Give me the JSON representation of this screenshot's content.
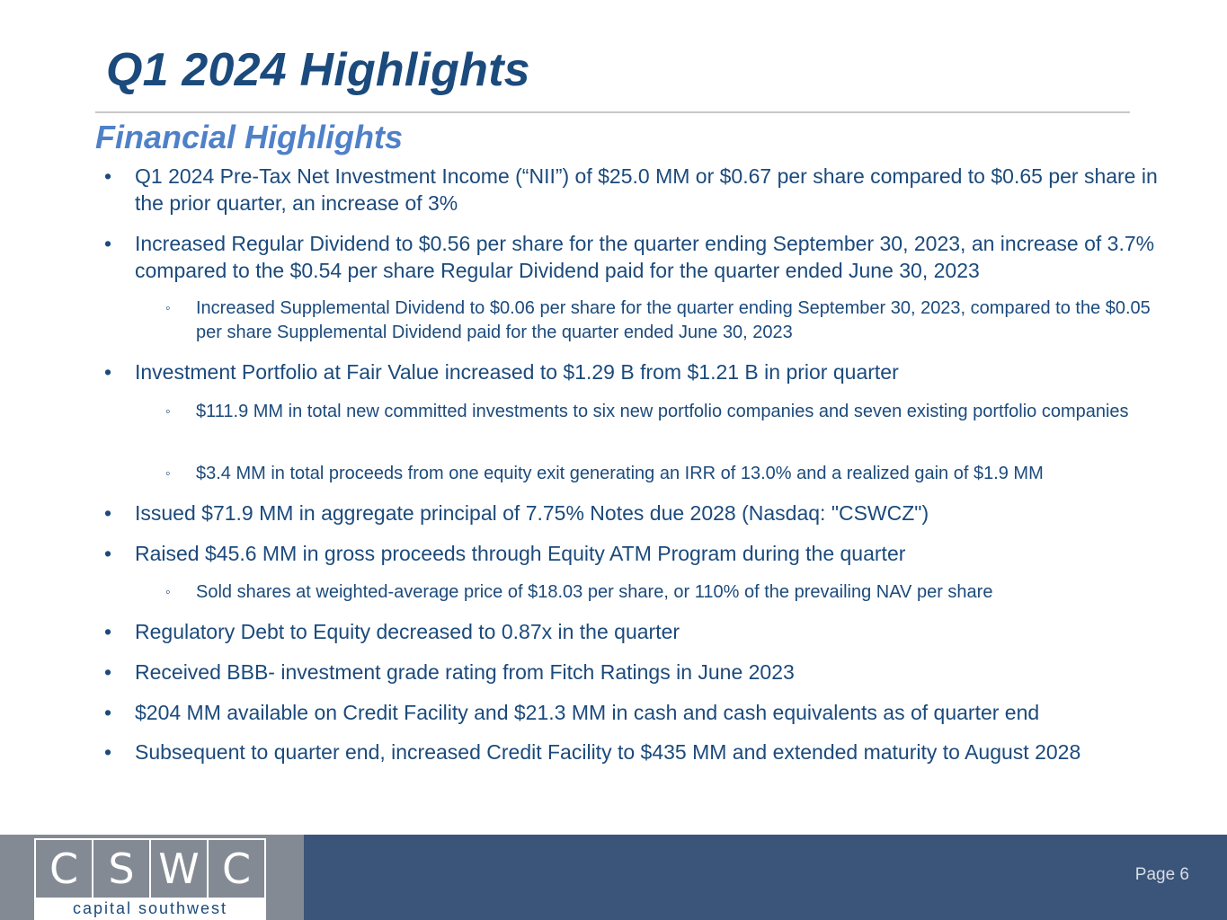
{
  "slide": {
    "title": "Q1 2024 Highlights",
    "subtitle": "Financial Highlights",
    "bullet_char": "•",
    "sub_bullet_char": "◦",
    "bullets": [
      "Q1 2024 Pre-Tax Net Investment Income (“NII”) of $25.0 MM or $0.67 per share compared to $0.65 per share in the prior quarter, an increase of 3%",
      "Increased Regular Dividend to $0.56 per share for the quarter ending September 30, 2023, an increase of 3.7% compared to the $0.54 per share Regular Dividend paid for the quarter ended June 30, 2023",
      "Increased Supplemental Dividend to $0.06 per share for the quarter ending September 30, 2023, compared to the $0.05 per share Supplemental Dividend paid for the quarter ended June 30, 2023",
      "Investment Portfolio at Fair Value increased to $1.29 B from $1.21 B in prior quarter",
      "$111.9 MM in total new committed investments to six new portfolio companies and seven existing portfolio companies",
      "$3.4 MM in total proceeds from one equity exit generating an IRR of 13.0% and a realized gain of $1.9 MM",
      "Issued $71.9 MM in aggregate principal of 7.75% Notes due 2028 (Nasdaq: \"CSWCZ\")",
      "Raised $45.6 MM in gross proceeds through Equity ATM Program during the quarter",
      "Sold shares at weighted-average price of $18.03 per share, or 110% of the prevailing NAV per share",
      "Regulatory Debt to Equity decreased to 0.87x in the quarter",
      "Received BBB- investment grade rating from Fitch Ratings in June 2023",
      "$204 MM available on Credit Facility and $21.3 MM in cash and cash equivalents as of quarter end",
      "Subsequent to quarter end, increased Credit Facility to $435 MM and extended maturity to August 2028"
    ]
  },
  "footer": {
    "logo_letters": [
      "C",
      "S",
      "W",
      "C"
    ],
    "logo_tagline": "capital southwest",
    "page_label": "Page 6"
  },
  "colors": {
    "title": "#1b4a7c",
    "subtitle": "#4f81c8",
    "footer_bar": "#3a5579",
    "logo_bg": "#848a94"
  }
}
